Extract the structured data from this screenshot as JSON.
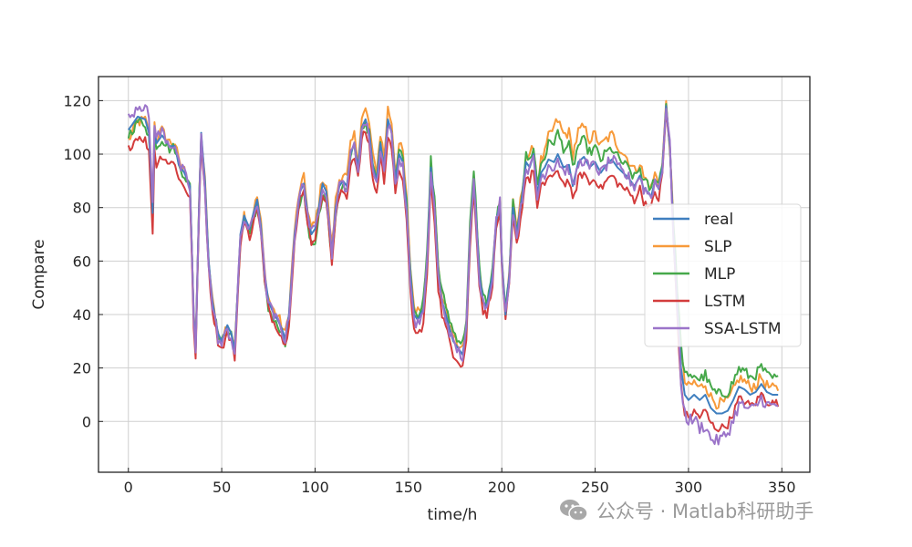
{
  "chart_data": {
    "type": "line",
    "title": "",
    "xlabel": "time/h",
    "ylabel": "Compare",
    "xlim": [
      -16,
      365
    ],
    "ylim": [
      -19,
      129
    ],
    "xticks": [
      0,
      50,
      100,
      150,
      200,
      250,
      300,
      350
    ],
    "yticks": [
      0,
      20,
      40,
      60,
      80,
      100,
      120
    ],
    "grid": true,
    "legend_position": "center-right",
    "series": [
      {
        "name": "real",
        "color": "#3f7fbf"
      },
      {
        "name": "SLP",
        "color": "#f79a3a"
      },
      {
        "name": "MLP",
        "color": "#46a84a"
      },
      {
        "name": "LSTM",
        "color": "#d33c3c"
      },
      {
        "name": "SSA-LSTM",
        "color": "#9b74c9"
      }
    ],
    "real_profile": [
      [
        0,
        109
      ],
      [
        5,
        114
      ],
      [
        9,
        113
      ],
      [
        11,
        108
      ],
      [
        12,
        95
      ],
      [
        13,
        78
      ],
      [
        14,
        110
      ],
      [
        15,
        104
      ],
      [
        18,
        107
      ],
      [
        22,
        103
      ],
      [
        25,
        103
      ],
      [
        27,
        96
      ],
      [
        30,
        93
      ],
      [
        33,
        88
      ],
      [
        35,
        40
      ],
      [
        36,
        27
      ],
      [
        38,
        85
      ],
      [
        39,
        108
      ],
      [
        41,
        90
      ],
      [
        43,
        60
      ],
      [
        45,
        45
      ],
      [
        48,
        33
      ],
      [
        50,
        30
      ],
      [
        53,
        36
      ],
      [
        55,
        33
      ],
      [
        57,
        27
      ],
      [
        60,
        70
      ],
      [
        62,
        77
      ],
      [
        65,
        72
      ],
      [
        67,
        78
      ],
      [
        69,
        83
      ],
      [
        71,
        73
      ],
      [
        73,
        55
      ],
      [
        75,
        45
      ],
      [
        78,
        40
      ],
      [
        80,
        38
      ],
      [
        82,
        35
      ],
      [
        84,
        31
      ],
      [
        86,
        40
      ],
      [
        89,
        70
      ],
      [
        92,
        86
      ],
      [
        94,
        89
      ],
      [
        96,
        78
      ],
      [
        98,
        70
      ],
      [
        100,
        72
      ],
      [
        102,
        80
      ],
      [
        104,
        89
      ],
      [
        106,
        86
      ],
      [
        107,
        78
      ],
      [
        109,
        63
      ],
      [
        111,
        80
      ],
      [
        113,
        88
      ],
      [
        115,
        90
      ],
      [
        117,
        88
      ],
      [
        119,
        100
      ],
      [
        121,
        104
      ],
      [
        123,
        95
      ],
      [
        125,
        110
      ],
      [
        127,
        113
      ],
      [
        129,
        108
      ],
      [
        131,
        95
      ],
      [
        133,
        90
      ],
      [
        135,
        104
      ],
      [
        137,
        95
      ],
      [
        139,
        113
      ],
      [
        141,
        108
      ],
      [
        143,
        90
      ],
      [
        145,
        100
      ],
      [
        147,
        97
      ],
      [
        149,
        80
      ],
      [
        151,
        55
      ],
      [
        153,
        40
      ],
      [
        155,
        38
      ],
      [
        158,
        42
      ],
      [
        160,
        60
      ],
      [
        162,
        95
      ],
      [
        164,
        80
      ],
      [
        166,
        55
      ],
      [
        168,
        45
      ],
      [
        170,
        40
      ],
      [
        172,
        35
      ],
      [
        174,
        30
      ],
      [
        176,
        28
      ],
      [
        179,
        25
      ],
      [
        181,
        35
      ],
      [
        183,
        70
      ],
      [
        185,
        90
      ],
      [
        186,
        80
      ],
      [
        188,
        55
      ],
      [
        190,
        45
      ],
      [
        192,
        43
      ],
      [
        195,
        55
      ],
      [
        197,
        75
      ],
      [
        199,
        82
      ],
      [
        200,
        60
      ],
      [
        202,
        40
      ],
      [
        204,
        55
      ],
      [
        206,
        80
      ],
      [
        208,
        70
      ],
      [
        211,
        85
      ],
      [
        213,
        97
      ],
      [
        215,
        95
      ],
      [
        217,
        100
      ],
      [
        219,
        85
      ],
      [
        221,
        93
      ],
      [
        223,
        95
      ],
      [
        225,
        98
      ],
      [
        228,
        97
      ],
      [
        230,
        100
      ],
      [
        233,
        95
      ],
      [
        236,
        96
      ],
      [
        238,
        88
      ],
      [
        241,
        97
      ],
      [
        244,
        99
      ],
      [
        247,
        95
      ],
      [
        250,
        97
      ],
      [
        253,
        93
      ],
      [
        256,
        96
      ],
      [
        259,
        98
      ],
      [
        262,
        95
      ],
      [
        265,
        93
      ],
      [
        268,
        91
      ],
      [
        271,
        88
      ],
      [
        274,
        92
      ],
      [
        276,
        87
      ],
      [
        278,
        86
      ],
      [
        280,
        84
      ],
      [
        282,
        90
      ],
      [
        284,
        87
      ],
      [
        286,
        95
      ],
      [
        288,
        118
      ],
      [
        290,
        103
      ],
      [
        292,
        70
      ],
      [
        294,
        45
      ],
      [
        296,
        20
      ],
      [
        298,
        10
      ],
      [
        300,
        8
      ],
      [
        303,
        10
      ],
      [
        306,
        8
      ],
      [
        309,
        10
      ],
      [
        312,
        5
      ],
      [
        315,
        3
      ],
      [
        318,
        3
      ],
      [
        321,
        4
      ],
      [
        324,
        8
      ],
      [
        327,
        13
      ],
      [
        330,
        12
      ],
      [
        333,
        10
      ],
      [
        336,
        11
      ],
      [
        339,
        14
      ],
      [
        342,
        11
      ],
      [
        345,
        10
      ],
      [
        348,
        10
      ]
    ],
    "series_offsets": {
      "real": [
        [
          0,
          0
        ]
      ],
      "SLP": [
        [
          0,
          -4
        ],
        [
          15,
          2
        ],
        [
          40,
          0
        ],
        [
          100,
          2
        ],
        [
          140,
          4
        ],
        [
          200,
          0
        ],
        [
          223,
          5
        ],
        [
          228,
          13
        ],
        [
          260,
          9
        ],
        [
          284,
          2
        ],
        [
          290,
          0
        ],
        [
          296,
          5
        ],
        [
          348,
          2
        ]
      ],
      "MLP": [
        [
          0,
          -2
        ],
        [
          40,
          0
        ],
        [
          100,
          -4
        ],
        [
          150,
          2
        ],
        [
          180,
          4
        ],
        [
          200,
          0
        ],
        [
          223,
          4
        ],
        [
          228,
          8
        ],
        [
          260,
          4
        ],
        [
          284,
          2
        ],
        [
          290,
          0
        ],
        [
          296,
          8
        ],
        [
          348,
          6
        ]
      ],
      "LSTM": [
        [
          0,
          -7
        ],
        [
          15,
          -8
        ],
        [
          40,
          -3
        ],
        [
          100,
          -3
        ],
        [
          150,
          -6
        ],
        [
          200,
          -3
        ],
        [
          223,
          -6
        ],
        [
          260,
          -6
        ],
        [
          284,
          -4
        ],
        [
          290,
          0
        ],
        [
          296,
          -7
        ],
        [
          348,
          -3
        ]
      ],
      "SSA-LSTM": [
        [
          0,
          4
        ],
        [
          10,
          5
        ],
        [
          15,
          2
        ],
        [
          40,
          -2
        ],
        [
          100,
          0
        ],
        [
          150,
          -2
        ],
        [
          200,
          0
        ],
        [
          223,
          -2
        ],
        [
          260,
          0
        ],
        [
          284,
          0
        ],
        [
          290,
          0
        ],
        [
          296,
          -6
        ],
        [
          310,
          -12
        ],
        [
          325,
          -7
        ],
        [
          348,
          -4
        ]
      ]
    },
    "noise_amplitude": {
      "real": 1.0,
      "SLP": 2.2,
      "MLP": 2.0,
      "LSTM": 1.6,
      "SSA-LSTM": 2.4
    }
  },
  "watermark": {
    "icon": "wechat-icon",
    "text": "公众号 · Matlab科研助手"
  }
}
